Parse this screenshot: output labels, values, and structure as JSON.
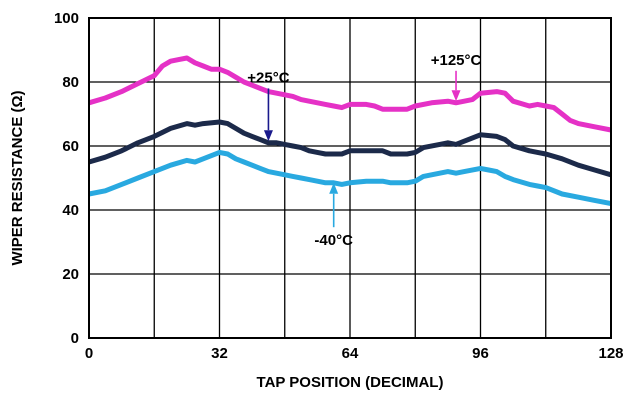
{
  "chart_data": {
    "type": "line",
    "title": "",
    "xlabel": "TAP POSITION (DECIMAL)",
    "ylabel": "WIPER RESISTANCE (Ω)",
    "xlim": [
      0,
      128
    ],
    "ylim": [
      0,
      100
    ],
    "xticks": [
      0,
      32,
      64,
      96,
      128
    ],
    "yticks": [
      0,
      20,
      40,
      60,
      80,
      100
    ],
    "grid": true,
    "x_grid_step": 16,
    "y_grid_step": 20,
    "legend": "none",
    "series": [
      {
        "color": "#e531c6",
        "points": [
          [
            0,
            73.5
          ],
          [
            4,
            75
          ],
          [
            8,
            77
          ],
          [
            12,
            79.5
          ],
          [
            16,
            82
          ],
          [
            18,
            85
          ],
          [
            20,
            86.5
          ],
          [
            22,
            87
          ],
          [
            24,
            87.5
          ],
          [
            26,
            86
          ],
          [
            28,
            85
          ],
          [
            30,
            84
          ],
          [
            32,
            84
          ],
          [
            34,
            83
          ],
          [
            36,
            81.5
          ],
          [
            38,
            80
          ],
          [
            40,
            79
          ],
          [
            42,
            78
          ],
          [
            44,
            77
          ],
          [
            46,
            76.5
          ],
          [
            48,
            76
          ],
          [
            50,
            75.5
          ],
          [
            52,
            74.5
          ],
          [
            54,
            74
          ],
          [
            56,
            73.5
          ],
          [
            58,
            73
          ],
          [
            60,
            72.5
          ],
          [
            62,
            72
          ],
          [
            64,
            73
          ],
          [
            68,
            73
          ],
          [
            70,
            72.5
          ],
          [
            72,
            71.5
          ],
          [
            76,
            71.5
          ],
          [
            78,
            71.5
          ],
          [
            80,
            72.5
          ],
          [
            84,
            73.5
          ],
          [
            88,
            74
          ],
          [
            90,
            73.5
          ],
          [
            92,
            74
          ],
          [
            94,
            74.5
          ],
          [
            96,
            76.5
          ],
          [
            100,
            77
          ],
          [
            102,
            76.5
          ],
          [
            104,
            74
          ],
          [
            108,
            72.5
          ],
          [
            110,
            73
          ],
          [
            112,
            72.5
          ],
          [
            114,
            72
          ],
          [
            116,
            70
          ],
          [
            118,
            68
          ],
          [
            120,
            67
          ],
          [
            124,
            66
          ],
          [
            128,
            65
          ]
        ]
      },
      {
        "color": "#1c2a4a",
        "points": [
          [
            0,
            55
          ],
          [
            4,
            56.5
          ],
          [
            8,
            58.5
          ],
          [
            12,
            61
          ],
          [
            16,
            63
          ],
          [
            20,
            65.5
          ],
          [
            24,
            67
          ],
          [
            26,
            66.5
          ],
          [
            28,
            67
          ],
          [
            32,
            67.5
          ],
          [
            34,
            67
          ],
          [
            36,
            65.5
          ],
          [
            38,
            64
          ],
          [
            40,
            63
          ],
          [
            42,
            62
          ],
          [
            44,
            61
          ],
          [
            46,
            61
          ],
          [
            48,
            60.5
          ],
          [
            50,
            60
          ],
          [
            52,
            59.5
          ],
          [
            54,
            58.5
          ],
          [
            56,
            58
          ],
          [
            58,
            57.5
          ],
          [
            60,
            57.5
          ],
          [
            62,
            57.5
          ],
          [
            64,
            58.5
          ],
          [
            68,
            58.5
          ],
          [
            72,
            58.5
          ],
          [
            74,
            57.5
          ],
          [
            78,
            57.5
          ],
          [
            80,
            58
          ],
          [
            82,
            59.5
          ],
          [
            86,
            60.5
          ],
          [
            88,
            61
          ],
          [
            90,
            60.5
          ],
          [
            92,
            61.5
          ],
          [
            96,
            63.5
          ],
          [
            100,
            63
          ],
          [
            102,
            62
          ],
          [
            104,
            60
          ],
          [
            108,
            58.5
          ],
          [
            110,
            58
          ],
          [
            112,
            57.5
          ],
          [
            116,
            56
          ],
          [
            120,
            54
          ],
          [
            124,
            52.5
          ],
          [
            128,
            51
          ]
        ]
      },
      {
        "color": "#29a9e0",
        "points": [
          [
            0,
            45
          ],
          [
            4,
            46
          ],
          [
            8,
            48
          ],
          [
            12,
            50
          ],
          [
            16,
            52
          ],
          [
            20,
            54
          ],
          [
            24,
            55.5
          ],
          [
            26,
            55
          ],
          [
            28,
            56
          ],
          [
            32,
            58
          ],
          [
            34,
            57.5
          ],
          [
            36,
            56
          ],
          [
            38,
            55
          ],
          [
            40,
            54
          ],
          [
            42,
            53
          ],
          [
            44,
            52
          ],
          [
            46,
            51.5
          ],
          [
            48,
            51
          ],
          [
            50,
            50.5
          ],
          [
            52,
            50
          ],
          [
            54,
            49.5
          ],
          [
            56,
            49
          ],
          [
            58,
            48.5
          ],
          [
            60,
            48.5
          ],
          [
            62,
            48
          ],
          [
            64,
            48.5
          ],
          [
            68,
            49
          ],
          [
            72,
            49
          ],
          [
            74,
            48.5
          ],
          [
            78,
            48.5
          ],
          [
            80,
            49
          ],
          [
            82,
            50.5
          ],
          [
            86,
            51.5
          ],
          [
            88,
            52
          ],
          [
            90,
            51.5
          ],
          [
            92,
            52
          ],
          [
            96,
            53
          ],
          [
            98,
            52.5
          ],
          [
            100,
            52
          ],
          [
            102,
            50.5
          ],
          [
            104,
            49.5
          ],
          [
            108,
            48
          ],
          [
            110,
            47.5
          ],
          [
            112,
            47
          ],
          [
            116,
            45
          ],
          [
            120,
            44
          ],
          [
            124,
            43
          ],
          [
            128,
            42
          ]
        ]
      }
    ],
    "annotations": [
      {
        "text": "+25°C",
        "x": 44,
        "y": 78,
        "arrow_to": [
          44,
          61.5
        ],
        "color": "#1a1a8c"
      },
      {
        "text": "+125°C",
        "x": 90,
        "y": 83.5,
        "arrow_to": [
          90,
          74
        ],
        "color": "#e531c6"
      },
      {
        "text": "-40°C",
        "x": 60,
        "y": 34,
        "arrow_to": [
          60,
          48.5
        ],
        "color": "#29a9e0"
      }
    ]
  }
}
